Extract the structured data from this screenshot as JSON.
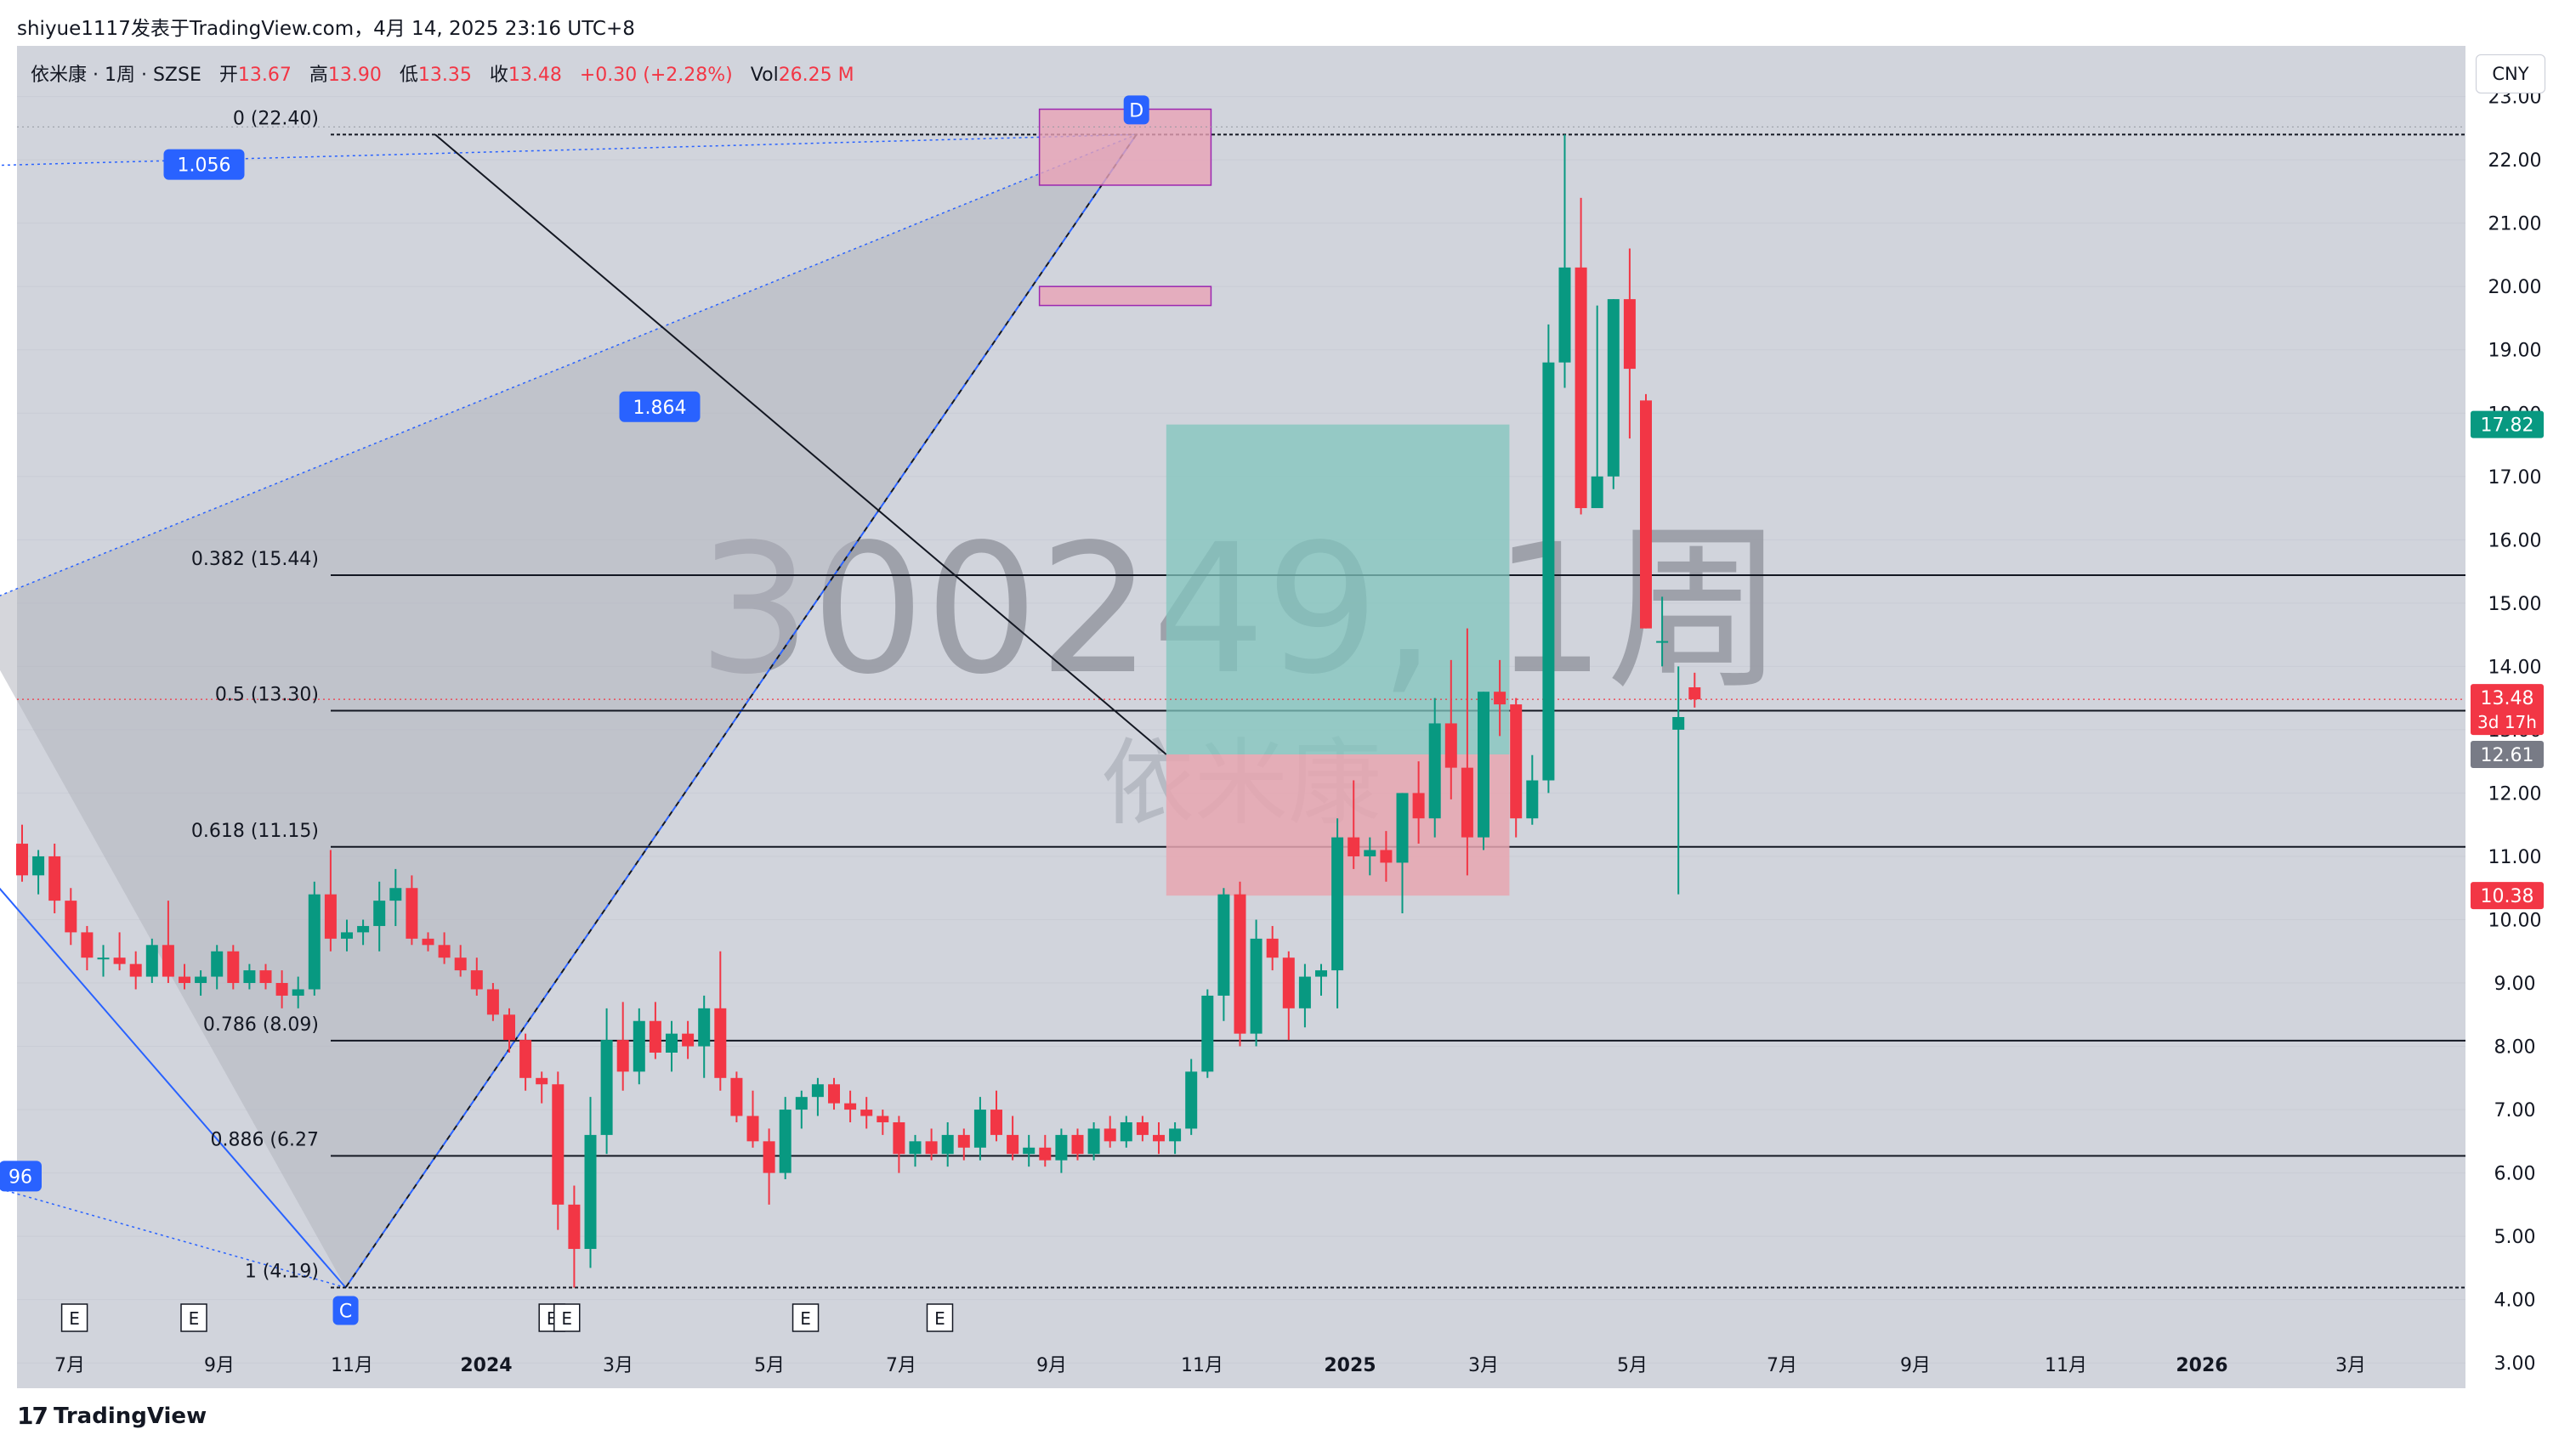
{
  "header": {
    "title": "shiyue1117发表于TradingView.com，4月 14, 2025 23:16 UTC+8"
  },
  "legend": {
    "symbol": "依米康 · 1周 · SZSE",
    "open_label": "开",
    "open": "13.67",
    "high_label": "高",
    "high": "13.90",
    "low_label": "低",
    "low": "13.35",
    "close_label": "收",
    "close": "13.48",
    "change": "+0.30 (+2.28%)",
    "vol_label": "Vol",
    "vol": "26.25 M"
  },
  "currency_button": "CNY",
  "watermark": {
    "symbol": "300249, 1周",
    "name": "依米康"
  },
  "footer": {
    "logo_text": "TradingView"
  },
  "colors": {
    "up": "#089981",
    "down": "#f23645",
    "accent_blue": "#2962ff",
    "fib_line": "#131722",
    "long_profit": "#80c6bd",
    "long_stop": "#e8a6b0",
    "zone": "#e9a3b7"
  },
  "chart_data": {
    "type": "candlestick",
    "price_axis": {
      "ylim": [
        2.6,
        23.8
      ],
      "ticks": [
        "3.00",
        "4.00",
        "5.00",
        "6.00",
        "7.00",
        "8.00",
        "9.00",
        "10.00",
        "11.00",
        "12.00",
        "13.00",
        "14.00",
        "15.00",
        "16.00",
        "17.00",
        "18.00",
        "19.00",
        "20.00",
        "21.00",
        "22.00",
        "23.00"
      ],
      "tick_values": [
        3,
        4,
        5,
        6,
        7,
        8,
        9,
        10,
        11,
        12,
        13,
        14,
        15,
        16,
        17,
        18,
        19,
        20,
        21,
        22,
        23
      ]
    },
    "price_badges": [
      {
        "label": "17.82",
        "value": 17.82,
        "color": "#089981"
      },
      {
        "label": "13.48",
        "sub": "3d 17h",
        "value": 13.48,
        "color": "#f23645"
      },
      {
        "label": "12.61",
        "value": 12.61,
        "color": "#787b86"
      },
      {
        "label": "10.38",
        "value": 10.38,
        "color": "#f23645"
      }
    ],
    "time_axis": {
      "labels": [
        "7月",
        "9月",
        "11月",
        "2024",
        "3月",
        "5月",
        "7月",
        "9月",
        "11月",
        "2025",
        "3月",
        "5月",
        "7月",
        "9月",
        "11月",
        "2026",
        "3月"
      ],
      "bold": [
        false,
        false,
        false,
        true,
        false,
        false,
        false,
        false,
        false,
        true,
        false,
        false,
        false,
        false,
        false,
        true,
        false
      ],
      "week_index": [
        -10,
        -1,
        8,
        17,
        25,
        34,
        42,
        51,
        60,
        69,
        77,
        86,
        95,
        103,
        112,
        121,
        129
      ]
    },
    "earnings_markers": {
      "label": "E",
      "week_index": [
        -8,
        0,
        24,
        25,
        41,
        50
      ]
    },
    "fib_levels": [
      {
        "label": "0 (22.40)",
        "value": 22.4
      },
      {
        "label": "0.382 (15.44)",
        "value": 15.44
      },
      {
        "label": "0.5 (13.30)",
        "value": 13.3
      },
      {
        "label": "0.618 (11.15)",
        "value": 11.15
      },
      {
        "label": "0.786 (8.09)",
        "value": 8.09
      },
      {
        "label": "0.886 (6.27",
        "value": 6.27
      },
      {
        "label": "1 (4.19)",
        "value": 4.19
      }
    ],
    "pattern_points": [
      {
        "label": "C",
        "week_index": 21,
        "value": 4.19
      },
      {
        "label": "D",
        "week_index": 74,
        "value": 22.4
      }
    ],
    "ratio_labels": [
      {
        "label": "1.056"
      },
      {
        "label": "1.864"
      },
      {
        "label": "96"
      }
    ],
    "candles": [
      {
        "o": 11.2,
        "h": 11.5,
        "l": 10.6,
        "c": 10.7
      },
      {
        "o": 10.7,
        "h": 11.1,
        "l": 10.4,
        "c": 11.0
      },
      {
        "o": 11.0,
        "h": 11.2,
        "l": 10.1,
        "c": 10.3
      },
      {
        "o": 10.3,
        "h": 10.5,
        "l": 9.6,
        "c": 9.8
      },
      {
        "o": 9.8,
        "h": 9.9,
        "l": 9.2,
        "c": 9.4
      },
      {
        "o": 9.4,
        "h": 9.6,
        "l": 9.1,
        "c": 9.4
      },
      {
        "o": 9.4,
        "h": 9.8,
        "l": 9.2,
        "c": 9.3
      },
      {
        "o": 9.3,
        "h": 9.5,
        "l": 8.9,
        "c": 9.1
      },
      {
        "o": 9.1,
        "h": 9.7,
        "l": 9.0,
        "c": 9.6
      },
      {
        "o": 9.6,
        "h": 10.3,
        "l": 9.0,
        "c": 9.1
      },
      {
        "o": 9.1,
        "h": 9.3,
        "l": 8.9,
        "c": 9.0
      },
      {
        "o": 9.0,
        "h": 9.2,
        "l": 8.8,
        "c": 9.1
      },
      {
        "o": 9.1,
        "h": 9.6,
        "l": 8.9,
        "c": 9.5
      },
      {
        "o": 9.5,
        "h": 9.6,
        "l": 8.9,
        "c": 9.0
      },
      {
        "o": 9.0,
        "h": 9.3,
        "l": 8.9,
        "c": 9.2
      },
      {
        "o": 9.2,
        "h": 9.3,
        "l": 8.9,
        "c": 9.0
      },
      {
        "o": 9.0,
        "h": 9.2,
        "l": 8.6,
        "c": 8.8
      },
      {
        "o": 8.8,
        "h": 9.1,
        "l": 8.6,
        "c": 8.9
      },
      {
        "o": 8.9,
        "h": 10.6,
        "l": 8.8,
        "c": 10.4
      },
      {
        "o": 10.4,
        "h": 11.1,
        "l": 9.5,
        "c": 9.7
      },
      {
        "o": 9.7,
        "h": 10.0,
        "l": 9.5,
        "c": 9.8
      },
      {
        "o": 9.8,
        "h": 10.0,
        "l": 9.6,
        "c": 9.9
      },
      {
        "o": 9.9,
        "h": 10.6,
        "l": 9.5,
        "c": 10.3
      },
      {
        "o": 10.3,
        "h": 10.8,
        "l": 9.9,
        "c": 10.5
      },
      {
        "o": 10.5,
        "h": 10.7,
        "l": 9.6,
        "c": 9.7
      },
      {
        "o": 9.7,
        "h": 9.8,
        "l": 9.5,
        "c": 9.6
      },
      {
        "o": 9.6,
        "h": 9.8,
        "l": 9.3,
        "c": 9.4
      },
      {
        "o": 9.4,
        "h": 9.6,
        "l": 9.1,
        "c": 9.2
      },
      {
        "o": 9.2,
        "h": 9.4,
        "l": 8.8,
        "c": 8.9
      },
      {
        "o": 8.9,
        "h": 9.0,
        "l": 8.4,
        "c": 8.5
      },
      {
        "o": 8.5,
        "h": 8.6,
        "l": 7.9,
        "c": 8.1
      },
      {
        "o": 8.1,
        "h": 8.2,
        "l": 7.3,
        "c": 7.5
      },
      {
        "o": 7.5,
        "h": 7.6,
        "l": 7.1,
        "c": 7.4
      },
      {
        "o": 7.4,
        "h": 7.6,
        "l": 5.1,
        "c": 5.5
      },
      {
        "o": 5.5,
        "h": 5.8,
        "l": 4.19,
        "c": 4.8
      },
      {
        "o": 4.8,
        "h": 7.2,
        "l": 4.5,
        "c": 6.6
      },
      {
        "o": 6.6,
        "h": 8.6,
        "l": 6.3,
        "c": 8.1
      },
      {
        "o": 8.1,
        "h": 8.7,
        "l": 7.3,
        "c": 7.6
      },
      {
        "o": 7.6,
        "h": 8.6,
        "l": 7.4,
        "c": 8.4
      },
      {
        "o": 8.4,
        "h": 8.7,
        "l": 7.8,
        "c": 7.9
      },
      {
        "o": 7.9,
        "h": 8.4,
        "l": 7.6,
        "c": 8.2
      },
      {
        "o": 8.2,
        "h": 8.4,
        "l": 7.8,
        "c": 8.0
      },
      {
        "o": 8.0,
        "h": 8.8,
        "l": 7.5,
        "c": 8.6
      },
      {
        "o": 8.6,
        "h": 9.5,
        "l": 7.3,
        "c": 7.5
      },
      {
        "o": 7.5,
        "h": 7.6,
        "l": 6.8,
        "c": 6.9
      },
      {
        "o": 6.9,
        "h": 7.3,
        "l": 6.4,
        "c": 6.5
      },
      {
        "o": 6.5,
        "h": 6.7,
        "l": 5.5,
        "c": 6.0
      },
      {
        "o": 6.0,
        "h": 7.2,
        "l": 5.9,
        "c": 7.0
      },
      {
        "o": 7.0,
        "h": 7.3,
        "l": 6.7,
        "c": 7.2
      },
      {
        "o": 7.2,
        "h": 7.5,
        "l": 6.9,
        "c": 7.4
      },
      {
        "o": 7.4,
        "h": 7.5,
        "l": 7.0,
        "c": 7.1
      },
      {
        "o": 7.1,
        "h": 7.3,
        "l": 6.8,
        "c": 7.0
      },
      {
        "o": 7.0,
        "h": 7.2,
        "l": 6.7,
        "c": 6.9
      },
      {
        "o": 6.9,
        "h": 7.0,
        "l": 6.6,
        "c": 6.8
      },
      {
        "o": 6.8,
        "h": 6.9,
        "l": 6.0,
        "c": 6.3
      },
      {
        "o": 6.3,
        "h": 6.6,
        "l": 6.1,
        "c": 6.5
      },
      {
        "o": 6.5,
        "h": 6.7,
        "l": 6.2,
        "c": 6.3
      },
      {
        "o": 6.3,
        "h": 6.8,
        "l": 6.1,
        "c": 6.6
      },
      {
        "o": 6.6,
        "h": 6.7,
        "l": 6.2,
        "c": 6.4
      },
      {
        "o": 6.4,
        "h": 7.2,
        "l": 6.2,
        "c": 7.0
      },
      {
        "o": 7.0,
        "h": 7.3,
        "l": 6.5,
        "c": 6.6
      },
      {
        "o": 6.6,
        "h": 6.9,
        "l": 6.2,
        "c": 6.3
      },
      {
        "o": 6.3,
        "h": 6.6,
        "l": 6.1,
        "c": 6.4
      },
      {
        "o": 6.4,
        "h": 6.6,
        "l": 6.1,
        "c": 6.2
      },
      {
        "o": 6.2,
        "h": 6.7,
        "l": 6.0,
        "c": 6.6
      },
      {
        "o": 6.6,
        "h": 6.7,
        "l": 6.2,
        "c": 6.3
      },
      {
        "o": 6.3,
        "h": 6.8,
        "l": 6.2,
        "c": 6.7
      },
      {
        "o": 6.7,
        "h": 6.9,
        "l": 6.4,
        "c": 6.5
      },
      {
        "o": 6.5,
        "h": 6.9,
        "l": 6.4,
        "c": 6.8
      },
      {
        "o": 6.8,
        "h": 6.9,
        "l": 6.5,
        "c": 6.6
      },
      {
        "o": 6.6,
        "h": 6.8,
        "l": 6.3,
        "c": 6.5
      },
      {
        "o": 6.5,
        "h": 6.8,
        "l": 6.3,
        "c": 6.7
      },
      {
        "o": 6.7,
        "h": 7.8,
        "l": 6.6,
        "c": 7.6
      },
      {
        "o": 7.6,
        "h": 8.9,
        "l": 7.5,
        "c": 8.8
      },
      {
        "o": 8.8,
        "h": 10.5,
        "l": 8.4,
        "c": 10.4
      },
      {
        "o": 10.4,
        "h": 10.6,
        "l": 8.0,
        "c": 8.2
      },
      {
        "o": 8.2,
        "h": 10.0,
        "l": 8.0,
        "c": 9.7
      },
      {
        "o": 9.7,
        "h": 9.9,
        "l": 9.2,
        "c": 9.4
      },
      {
        "o": 9.4,
        "h": 9.5,
        "l": 8.1,
        "c": 8.6
      },
      {
        "o": 8.6,
        "h": 9.3,
        "l": 8.3,
        "c": 9.1
      },
      {
        "o": 9.1,
        "h": 9.3,
        "l": 8.8,
        "c": 9.2
      },
      {
        "o": 9.2,
        "h": 11.6,
        "l": 8.6,
        "c": 11.3
      },
      {
        "o": 11.3,
        "h": 12.2,
        "l": 10.8,
        "c": 11.0
      },
      {
        "o": 11.0,
        "h": 11.3,
        "l": 10.7,
        "c": 11.1
      },
      {
        "o": 11.1,
        "h": 11.4,
        "l": 10.6,
        "c": 10.9
      },
      {
        "o": 10.9,
        "h": 12.0,
        "l": 10.1,
        "c": 12.0
      },
      {
        "o": 12.0,
        "h": 12.5,
        "l": 11.2,
        "c": 11.6
      },
      {
        "o": 11.6,
        "h": 13.5,
        "l": 11.3,
        "c": 13.1
      },
      {
        "o": 13.1,
        "h": 14.1,
        "l": 11.9,
        "c": 12.4
      },
      {
        "o": 12.4,
        "h": 14.6,
        "l": 10.7,
        "c": 11.3
      },
      {
        "o": 11.3,
        "h": 13.6,
        "l": 11.1,
        "c": 13.6
      },
      {
        "o": 13.6,
        "h": 14.1,
        "l": 12.9,
        "c": 13.4
      },
      {
        "o": 13.4,
        "h": 13.5,
        "l": 11.3,
        "c": 11.6
      },
      {
        "o": 11.6,
        "h": 12.6,
        "l": 11.5,
        "c": 12.2
      },
      {
        "o": 12.2,
        "h": 19.4,
        "l": 12.0,
        "c": 18.8
      },
      {
        "o": 18.8,
        "h": 22.4,
        "l": 18.4,
        "c": 20.3
      },
      {
        "o": 20.3,
        "h": 21.4,
        "l": 16.4,
        "c": 16.5
      },
      {
        "o": 16.5,
        "h": 19.7,
        "l": 16.5,
        "c": 17.0
      },
      {
        "o": 17.0,
        "h": 19.8,
        "l": 16.8,
        "c": 19.8
      },
      {
        "o": 19.8,
        "h": 20.6,
        "l": 17.6,
        "c": 18.7
      },
      {
        "o": 18.2,
        "h": 18.3,
        "l": 14.6,
        "c": 14.6
      },
      {
        "o": 14.4,
        "h": 15.1,
        "l": 14.0,
        "c": 14.4
      },
      {
        "o": 13.0,
        "h": 14.0,
        "l": 10.4,
        "c": 13.2
      },
      {
        "o": 13.67,
        "h": 13.9,
        "l": 13.35,
        "c": 13.48
      }
    ],
    "drawings": {
      "long_position": {
        "entry": 12.61,
        "target": 17.82,
        "stop": 10.38
      },
      "boxes": [
        {
          "top": 22.8,
          "bottom": 21.6
        },
        {
          "top": 20.0,
          "bottom": 19.7
        }
      ]
    }
  }
}
